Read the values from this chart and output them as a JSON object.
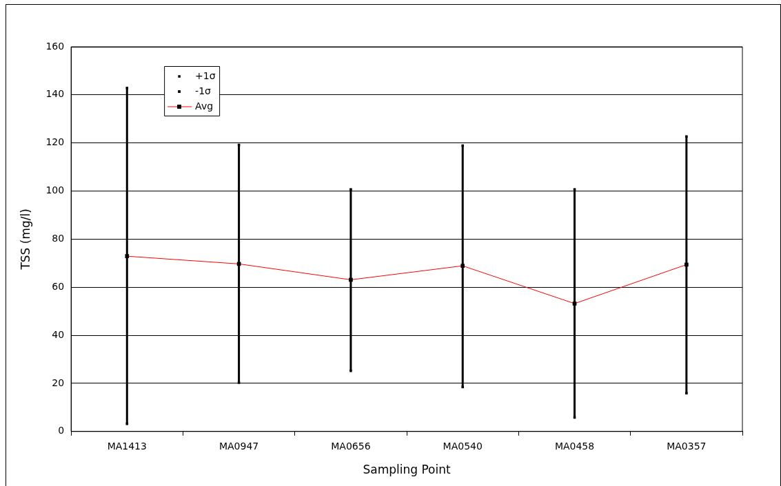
{
  "chart_data": {
    "type": "line",
    "xlabel": "Sampling Point",
    "ylabel": "TSS (mg/l)",
    "categories": [
      "MA1413",
      "MA0947",
      "MA0656",
      "MA0540",
      "MA0458",
      "MA0357"
    ],
    "series": [
      {
        "name": "+1σ",
        "type": "scatter",
        "marker": "square",
        "color": "#000000",
        "values": [
          142.9,
          119.2,
          100.7,
          118.9,
          100.7,
          122.7
        ]
      },
      {
        "name": "-1σ",
        "type": "scatter",
        "marker": "square",
        "color": "#000000",
        "values": [
          3.2,
          20.3,
          25.2,
          18.5,
          5.8,
          15.9
        ]
      },
      {
        "name": "Avg",
        "marker": "square",
        "color": "#ff0000",
        "values": [
          72.9,
          69.7,
          63.1,
          68.9,
          53.2,
          69.4
        ]
      }
    ],
    "ylim": [
      0,
      160
    ],
    "yticks": [
      0,
      20,
      40,
      60,
      80,
      100,
      120,
      140,
      160
    ],
    "grid": "y",
    "legend": "top left"
  }
}
